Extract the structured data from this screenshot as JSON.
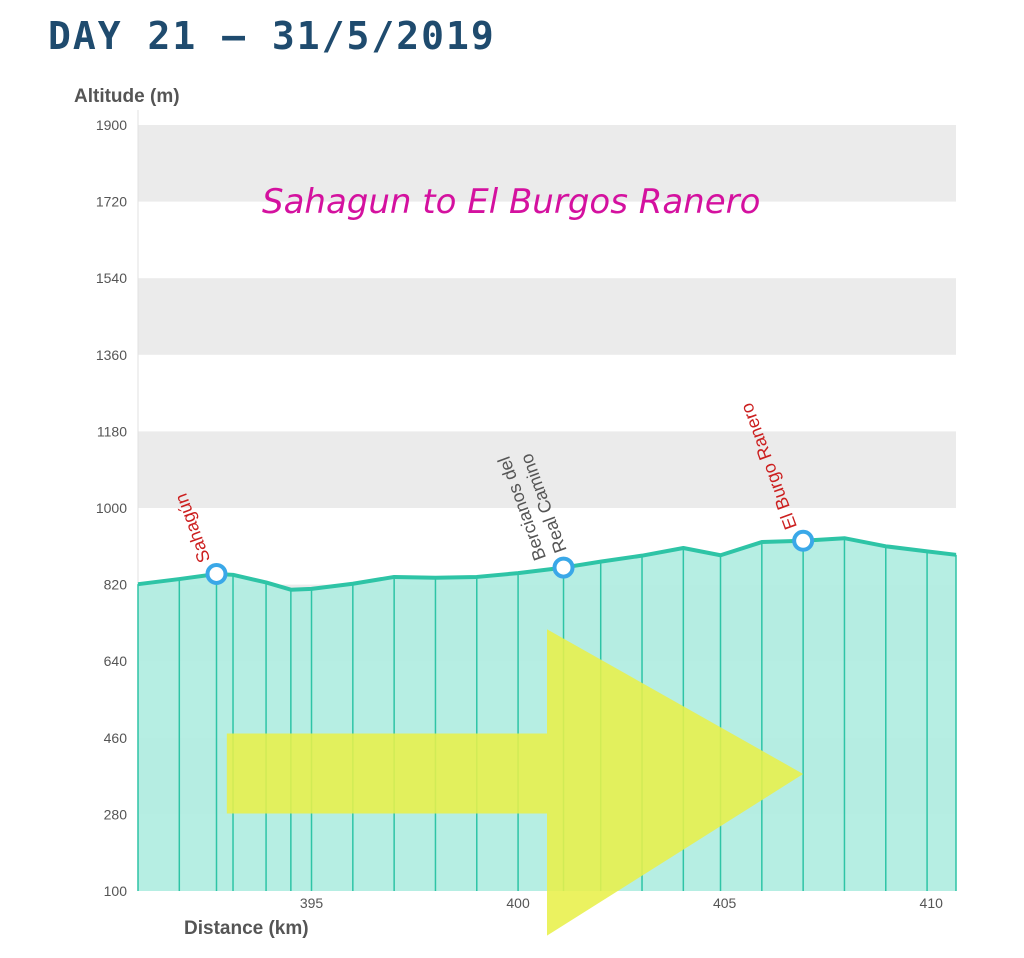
{
  "header": {
    "title": "DAY 21 — 31/5/2019"
  },
  "chart_data": {
    "type": "area",
    "title": "Sahagun to El Burgos Ranero",
    "xlabel": "Distance (km)",
    "ylabel": "Altitude (m)",
    "xlim": [
      390.8,
      410.6
    ],
    "ylim": [
      100,
      1900
    ],
    "yticks": [
      1900,
      1720,
      1540,
      1360,
      1180,
      1000,
      820,
      640,
      460,
      280,
      100
    ],
    "xticks": [
      395,
      400,
      405,
      410
    ],
    "grid": true,
    "colors": {
      "line": "#2ec4a6",
      "fill": "#b2ede2",
      "band": "#ebebeb",
      "marker": "#3aa8e8",
      "arrow": "#e8f04a",
      "title": "#d4119f",
      "header": "#1f4b6e"
    },
    "series": [
      {
        "x": [
          390.8,
          391.8,
          392.7,
          393.1,
          393.9,
          394.5,
          395.0,
          396.0,
          397.0,
          398.0,
          399.0,
          400.0,
          401.1,
          402.0,
          403.0,
          404.0,
          404.9,
          405.9,
          406.9,
          407.9,
          408.9,
          409.9,
          410.6
        ],
        "y": [
          821,
          833,
          845,
          843,
          825,
          808,
          810,
          822,
          838,
          836,
          838,
          847,
          860,
          874,
          888,
          906,
          889,
          920,
          923,
          929,
          910,
          898,
          890
        ]
      }
    ],
    "waypoints": [
      {
        "name": "Sahagún",
        "x": 392.7,
        "y": 845,
        "color": "#cc1f1f"
      },
      {
        "name": "Bercianos del Real Camino",
        "x": 401.1,
        "y": 860,
        "color": "#555555"
      },
      {
        "name": "El Burgo Ranero",
        "x": 406.9,
        "y": 923,
        "color": "#cc1f1f"
      }
    ]
  }
}
